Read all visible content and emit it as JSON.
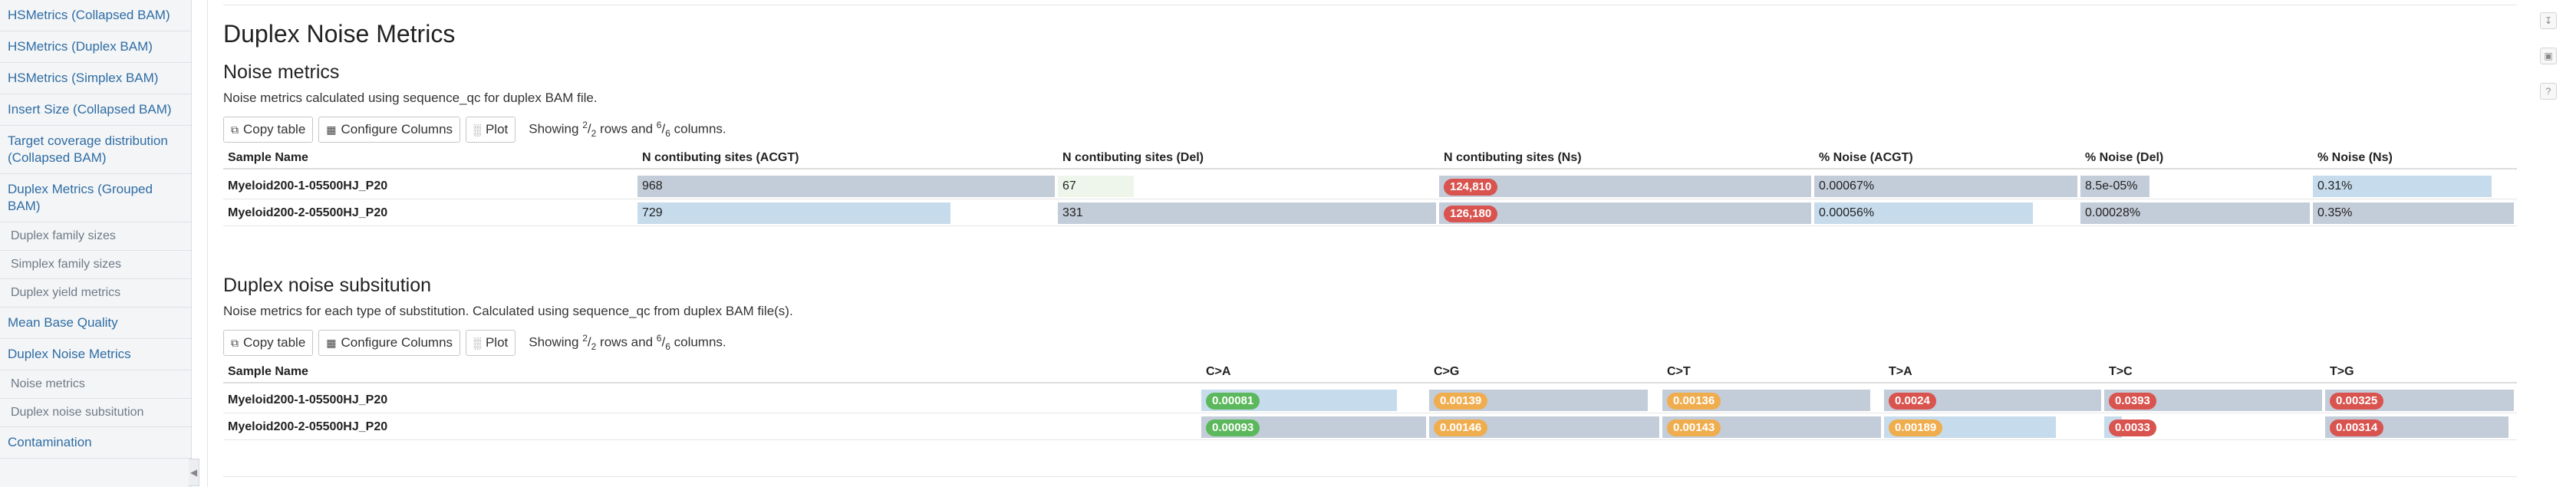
{
  "sidebar": {
    "items": [
      {
        "label": "HSMetrics (Collapsed BAM)",
        "sub": false
      },
      {
        "label": "HSMetrics (Duplex BAM)",
        "sub": false
      },
      {
        "label": "HSMetrics (Simplex BAM)",
        "sub": false
      },
      {
        "label": "Insert Size (Collapsed BAM)",
        "sub": false
      },
      {
        "label": "Target coverage distribution (Collapsed BAM)",
        "sub": false
      },
      {
        "label": "Duplex Metrics (Grouped BAM)",
        "sub": false
      },
      {
        "label": "Duplex family sizes",
        "sub": true
      },
      {
        "label": "Simplex family sizes",
        "sub": true
      },
      {
        "label": "Duplex yield metrics",
        "sub": true
      },
      {
        "label": "Mean Base Quality",
        "sub": false
      },
      {
        "label": "Duplex Noise Metrics",
        "sub": false
      },
      {
        "label": "Noise metrics",
        "sub": true
      },
      {
        "label": "Duplex noise subsitution",
        "sub": true
      },
      {
        "label": "Contamination",
        "sub": false
      }
    ],
    "toggle_icon": "chevron-left-icon"
  },
  "page": {
    "title": "Duplex Noise Metrics"
  },
  "toolbar": {
    "copy_label": "Copy table",
    "configure_label": "Configure Columns",
    "plot_label": "Plot",
    "showing_prefix": "Showing",
    "rows_num": "2",
    "rows_den": "2",
    "rows_word": "rows and",
    "cols_num": "6",
    "cols_den": "6",
    "cols_word": "columns."
  },
  "noise": {
    "title": "Noise metrics",
    "description": "Noise metrics calculated using sequence_qc for duplex BAM file.",
    "headers": [
      "Sample Name",
      "N contibuting sites (ACGT)",
      "N contibuting sites (Del)",
      "N contibuting sites (Ns)",
      "% Noise (ACGT)",
      "% Noise (Del)",
      "% Noise (Ns)"
    ],
    "rows": [
      {
        "sample": "Myeloid200-1-05500HJ_P20",
        "acgt": "968",
        "del": "67",
        "ns": "124,810",
        "pacgt": "0.00067%",
        "pdel": "8.5e-05%",
        "pns": "0.31%"
      },
      {
        "sample": "Myeloid200-2-05500HJ_P20",
        "acgt": "729",
        "del": "331",
        "ns": "126,180",
        "pacgt": "0.00056%",
        "pdel": "0.00028%",
        "pns": "0.35%"
      }
    ],
    "bar_fractions": [
      {
        "acgt": 1.0,
        "del": 0.2,
        "ns": 1.0,
        "pacgt": 1.0,
        "pdel": 0.3,
        "pns": 0.89
      },
      {
        "acgt": 0.75,
        "del": 1.0,
        "ns": 1.0,
        "pacgt": 0.83,
        "pdel": 1.0,
        "pns": 1.0
      }
    ]
  },
  "subst": {
    "title": "Duplex noise subsitution",
    "description": "Noise metrics for each type of substitution. Calculated using sequence_qc from duplex BAM file(s).",
    "headers": [
      "Sample Name",
      "C>A",
      "C>G",
      "C>T",
      "T>A",
      "T>C",
      "T>G"
    ],
    "rows": [
      {
        "sample": "Myeloid200-1-05500HJ_P20",
        "vals": [
          "0.00081",
          "0.00139",
          "0.00136",
          "0.0024",
          "0.0393",
          "0.00325"
        ]
      },
      {
        "sample": "Myeloid200-2-05500HJ_P20",
        "vals": [
          "0.00093",
          "0.00146",
          "0.00143",
          "0.00189",
          "0.0033",
          "0.00314"
        ]
      }
    ],
    "bar_fractions": [
      [
        0.87,
        0.95,
        0.95,
        1.0,
        1.0,
        1.0
      ],
      [
        1.0,
        1.0,
        1.0,
        0.79,
        0.08,
        0.97
      ]
    ],
    "badge_colors": [
      [
        "#5cb85c",
        "#f0ad4e",
        "#f0ad4e",
        "#d9534f",
        "#d9534f",
        "#d9534f"
      ],
      [
        "#5cb85c",
        "#f0ad4e",
        "#f0ad4e",
        "#f0ad4e",
        "#d9534f",
        "#d9534f"
      ]
    ]
  },
  "colors": {
    "link": "#2e6da4",
    "bar_blue": "#c6dbeb",
    "bar_slate": "#c3ccd9",
    "bar_light_green": "#eef6ec",
    "badge_red": "#d9534f",
    "badge_orange": "#f0ad4e",
    "badge_green": "#5cb85c"
  },
  "utility_icons": [
    "download-icon",
    "save-icon",
    "help-icon"
  ]
}
